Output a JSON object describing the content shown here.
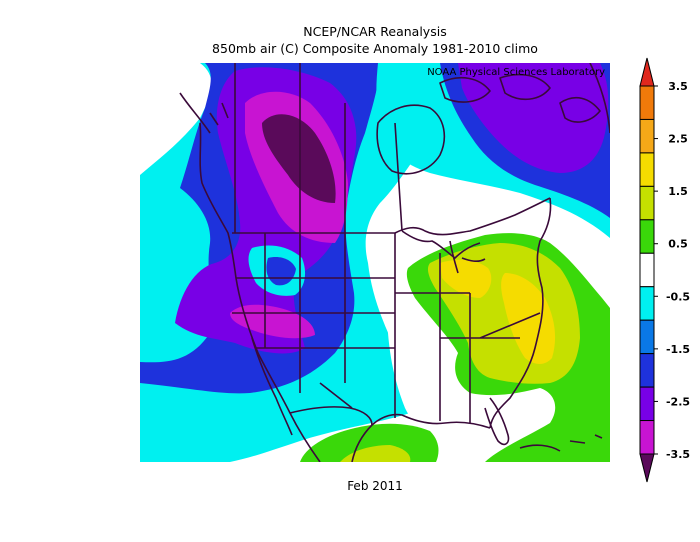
{
  "title_line1": "NCEP/NCAR Reanalysis",
  "title_line2": "850mb air (C) Composite Anomaly 1981-2010 climo",
  "credit": "NOAA Physical Sciences Laboratory",
  "date_label": "Feb 2011",
  "colorbar": {
    "ticks": [
      "3.5",
      "2.5",
      "1.5",
      "0.5",
      "-0.5",
      "-1.5",
      "-2.5",
      "-3.5"
    ],
    "colors": [
      "#e0281e",
      "#f07a0a",
      "#f5a818",
      "#f5dc00",
      "#c5e000",
      "#3ad80a",
      "#ffffff",
      "#00f0f0",
      "#0a78e6",
      "#1e32dc",
      "#7800e6",
      "#c814d2",
      "#5a0a5a"
    ]
  }
}
